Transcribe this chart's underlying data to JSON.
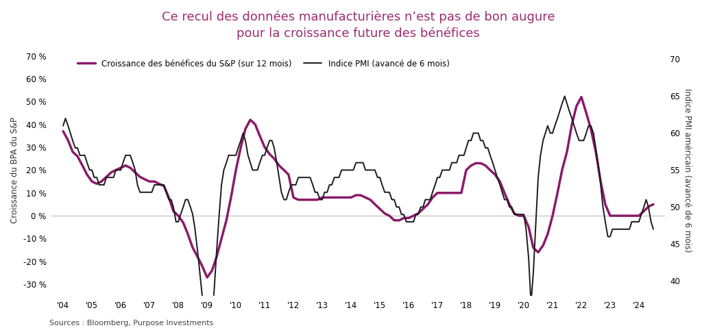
{
  "title": "Ce recul des données manufacturières n’est pas de bon augure\npour la croissance future des bénéfices",
  "title_color": "#9B2D6F",
  "background_color": "#FFFFFF",
  "ylabel_left": "Croissance du BPA du S&P",
  "ylabel_right": "Indice PMI américain (avancé de 6 mois)",
  "source_text": "Sources : Bloomberg, Purpose Investments",
  "legend_sp": "Croissance des bénéfices du S&P (sur 12 mois)",
  "legend_pmi": "Indice PMI (avancé de 6 mois)",
  "sp_color": "#8B1A6B",
  "pmi_color": "#1A1A1A",
  "sp_linewidth": 2.5,
  "pmi_linewidth": 1.4,
  "ylim_left": [
    -35,
    75
  ],
  "ylim_right": [
    38,
    72
  ],
  "yticks_left": [
    -30,
    -20,
    -10,
    0,
    10,
    20,
    30,
    40,
    50,
    60,
    70
  ],
  "yticks_right": [
    40,
    45,
    50,
    55,
    60,
    65,
    70
  ],
  "xtick_labels": [
    "'04",
    "'05",
    "'06",
    "'07",
    "'08",
    "'09",
    "'10",
    "'11",
    "'12",
    "'13",
    "'14",
    "'15",
    "'16",
    "'17",
    "'18",
    "'19",
    "'20",
    "'21",
    "'22",
    "'23",
    "'24"
  ],
  "sp_data": {
    "dates": [
      2004.0,
      2004.17,
      2004.33,
      2004.5,
      2004.67,
      2004.83,
      2005.0,
      2005.17,
      2005.33,
      2005.5,
      2005.67,
      2005.83,
      2006.0,
      2006.17,
      2006.33,
      2006.5,
      2006.67,
      2006.83,
      2007.0,
      2007.17,
      2007.33,
      2007.5,
      2007.67,
      2007.83,
      2008.0,
      2008.17,
      2008.33,
      2008.5,
      2008.67,
      2008.83,
      2009.0,
      2009.17,
      2009.33,
      2009.5,
      2009.67,
      2009.83,
      2010.0,
      2010.17,
      2010.33,
      2010.5,
      2010.67,
      2010.83,
      2011.0,
      2011.17,
      2011.33,
      2011.5,
      2011.67,
      2011.83,
      2012.0,
      2012.17,
      2012.33,
      2012.5,
      2012.67,
      2012.83,
      2013.0,
      2013.17,
      2013.33,
      2013.5,
      2013.67,
      2013.83,
      2014.0,
      2014.17,
      2014.33,
      2014.5,
      2014.67,
      2014.83,
      2015.0,
      2015.17,
      2015.33,
      2015.5,
      2015.67,
      2015.83,
      2016.0,
      2016.17,
      2016.33,
      2016.5,
      2016.67,
      2016.83,
      2017.0,
      2017.17,
      2017.33,
      2017.5,
      2017.67,
      2017.83,
      2018.0,
      2018.17,
      2018.33,
      2018.5,
      2018.67,
      2018.83,
      2019.0,
      2019.17,
      2019.33,
      2019.5,
      2019.67,
      2019.83,
      2020.0,
      2020.17,
      2020.33,
      2020.5,
      2020.67,
      2020.83,
      2021.0,
      2021.17,
      2021.33,
      2021.5,
      2021.67,
      2021.83,
      2022.0,
      2022.17,
      2022.33,
      2022.5,
      2022.67,
      2022.83,
      2023.0,
      2023.17,
      2023.33,
      2023.5,
      2023.67,
      2023.83,
      2024.0,
      2024.17,
      2024.33,
      2024.5
    ],
    "values": [
      37,
      33,
      28,
      26,
      22,
      18,
      15,
      14,
      15,
      17,
      19,
      20,
      21,
      22,
      21,
      19,
      17,
      16,
      15,
      15,
      14,
      13,
      8,
      2,
      0,
      -3,
      -8,
      -14,
      -18,
      -22,
      -27,
      -24,
      -18,
      -10,
      -2,
      8,
      20,
      30,
      38,
      42,
      40,
      35,
      30,
      27,
      25,
      22,
      20,
      18,
      8,
      7,
      7,
      7,
      7,
      7,
      8,
      8,
      8,
      8,
      8,
      8,
      8,
      9,
      9,
      8,
      7,
      5,
      3,
      1,
      0,
      -2,
      -2,
      -1,
      -1,
      0,
      1,
      3,
      5,
      8,
      10,
      10,
      10,
      10,
      10,
      10,
      20,
      22,
      23,
      23,
      22,
      20,
      18,
      15,
      10,
      5,
      1,
      0,
      0,
      -5,
      -14,
      -16,
      -13,
      -8,
      0,
      10,
      20,
      28,
      40,
      48,
      52,
      45,
      38,
      28,
      15,
      5,
      0,
      0,
      0,
      0,
      0,
      0,
      0,
      2,
      4,
      5
    ]
  },
  "pmi_data": {
    "dates": [
      2004.0,
      2004.08,
      2004.17,
      2004.25,
      2004.33,
      2004.42,
      2004.5,
      2004.58,
      2004.67,
      2004.75,
      2004.83,
      2004.92,
      2005.0,
      2005.08,
      2005.17,
      2005.25,
      2005.33,
      2005.42,
      2005.5,
      2005.58,
      2005.67,
      2005.75,
      2005.83,
      2005.92,
      2006.0,
      2006.08,
      2006.17,
      2006.25,
      2006.33,
      2006.42,
      2006.5,
      2006.58,
      2006.67,
      2006.75,
      2006.83,
      2006.92,
      2007.0,
      2007.08,
      2007.17,
      2007.25,
      2007.33,
      2007.42,
      2007.5,
      2007.58,
      2007.67,
      2007.75,
      2007.83,
      2007.92,
      2008.0,
      2008.08,
      2008.17,
      2008.25,
      2008.33,
      2008.42,
      2008.5,
      2008.58,
      2008.67,
      2008.75,
      2008.83,
      2008.92,
      2009.0,
      2009.08,
      2009.17,
      2009.25,
      2009.33,
      2009.42,
      2009.5,
      2009.58,
      2009.67,
      2009.75,
      2009.83,
      2009.92,
      2010.0,
      2010.08,
      2010.17,
      2010.25,
      2010.33,
      2010.42,
      2010.5,
      2010.58,
      2010.67,
      2010.75,
      2010.83,
      2010.92,
      2011.0,
      2011.08,
      2011.17,
      2011.25,
      2011.33,
      2011.42,
      2011.5,
      2011.58,
      2011.67,
      2011.75,
      2011.83,
      2011.92,
      2012.0,
      2012.08,
      2012.17,
      2012.25,
      2012.33,
      2012.42,
      2012.5,
      2012.58,
      2012.67,
      2012.75,
      2012.83,
      2012.92,
      2013.0,
      2013.08,
      2013.17,
      2013.25,
      2013.33,
      2013.42,
      2013.5,
      2013.58,
      2013.67,
      2013.75,
      2013.83,
      2013.92,
      2014.0,
      2014.08,
      2014.17,
      2014.25,
      2014.33,
      2014.42,
      2014.5,
      2014.58,
      2014.67,
      2014.75,
      2014.83,
      2014.92,
      2015.0,
      2015.08,
      2015.17,
      2015.25,
      2015.33,
      2015.42,
      2015.5,
      2015.58,
      2015.67,
      2015.75,
      2015.83,
      2015.92,
      2016.0,
      2016.08,
      2016.17,
      2016.25,
      2016.33,
      2016.42,
      2016.5,
      2016.58,
      2016.67,
      2016.75,
      2016.83,
      2016.92,
      2017.0,
      2017.08,
      2017.17,
      2017.25,
      2017.33,
      2017.42,
      2017.5,
      2017.58,
      2017.67,
      2017.75,
      2017.83,
      2017.92,
      2018.0,
      2018.08,
      2018.17,
      2018.25,
      2018.33,
      2018.42,
      2018.5,
      2018.58,
      2018.67,
      2018.75,
      2018.83,
      2018.92,
      2019.0,
      2019.08,
      2019.17,
      2019.25,
      2019.33,
      2019.42,
      2019.5,
      2019.58,
      2019.67,
      2019.75,
      2019.83,
      2019.92,
      2020.0,
      2020.08,
      2020.17,
      2020.25,
      2020.33,
      2020.42,
      2020.5,
      2020.58,
      2020.67,
      2020.75,
      2020.83,
      2020.92,
      2021.0,
      2021.08,
      2021.17,
      2021.25,
      2021.33,
      2021.42,
      2021.5,
      2021.58,
      2021.67,
      2021.75,
      2021.83,
      2021.92,
      2022.0,
      2022.08,
      2022.17,
      2022.25,
      2022.33,
      2022.42,
      2022.5,
      2022.58,
      2022.67,
      2022.75,
      2022.83,
      2022.92,
      2023.0,
      2023.08,
      2023.17,
      2023.25,
      2023.33,
      2023.42,
      2023.5,
      2023.58,
      2023.67,
      2023.75,
      2023.83,
      2023.92,
      2024.0,
      2024.08,
      2024.17,
      2024.25,
      2024.33,
      2024.42,
      2024.5
    ],
    "values": [
      61,
      62,
      61,
      60,
      59,
      58,
      58,
      57,
      57,
      57,
      56,
      55,
      55,
      54,
      54,
      53,
      53,
      53,
      54,
      54,
      54,
      54,
      55,
      55,
      55,
      56,
      57,
      57,
      57,
      56,
      55,
      53,
      52,
      52,
      52,
      52,
      52,
      52,
      53,
      53,
      53,
      53,
      53,
      52,
      51,
      51,
      50,
      48,
      48,
      49,
      50,
      51,
      51,
      50,
      49,
      47,
      44,
      41,
      38,
      34,
      33,
      33,
      35,
      39,
      44,
      49,
      53,
      55,
      56,
      57,
      57,
      57,
      57,
      58,
      59,
      60,
      59,
      57,
      56,
      55,
      55,
      55,
      56,
      57,
      57,
      58,
      59,
      59,
      58,
      56,
      54,
      52,
      51,
      51,
      52,
      53,
      53,
      53,
      54,
      54,
      54,
      54,
      54,
      54,
      53,
      52,
      52,
      51,
      51,
      52,
      52,
      53,
      53,
      54,
      54,
      54,
      55,
      55,
      55,
      55,
      55,
      55,
      56,
      56,
      56,
      56,
      55,
      55,
      55,
      55,
      55,
      54,
      54,
      53,
      52,
      52,
      52,
      51,
      51,
      50,
      50,
      49,
      49,
      48,
      48,
      48,
      48,
      49,
      49,
      50,
      50,
      51,
      51,
      51,
      52,
      53,
      54,
      54,
      55,
      55,
      55,
      55,
      56,
      56,
      56,
      57,
      57,
      57,
      58,
      59,
      59,
      60,
      60,
      60,
      59,
      59,
      58,
      58,
      57,
      56,
      55,
      54,
      53,
      52,
      51,
      51,
      50,
      50,
      49,
      49,
      49,
      49,
      49,
      47,
      43,
      37,
      41,
      48,
      54,
      57,
      59,
      60,
      61,
      60,
      60,
      61,
      62,
      63,
      64,
      65,
      64,
      63,
      62,
      61,
      60,
      59,
      59,
      59,
      60,
      61,
      61,
      60,
      58,
      56,
      53,
      50,
      48,
      46,
      46,
      47,
      47,
      47,
      47,
      47,
      47,
      47,
      47,
      48,
      48,
      48,
      48,
      49,
      50,
      51,
      50,
      48,
      47
    ]
  }
}
